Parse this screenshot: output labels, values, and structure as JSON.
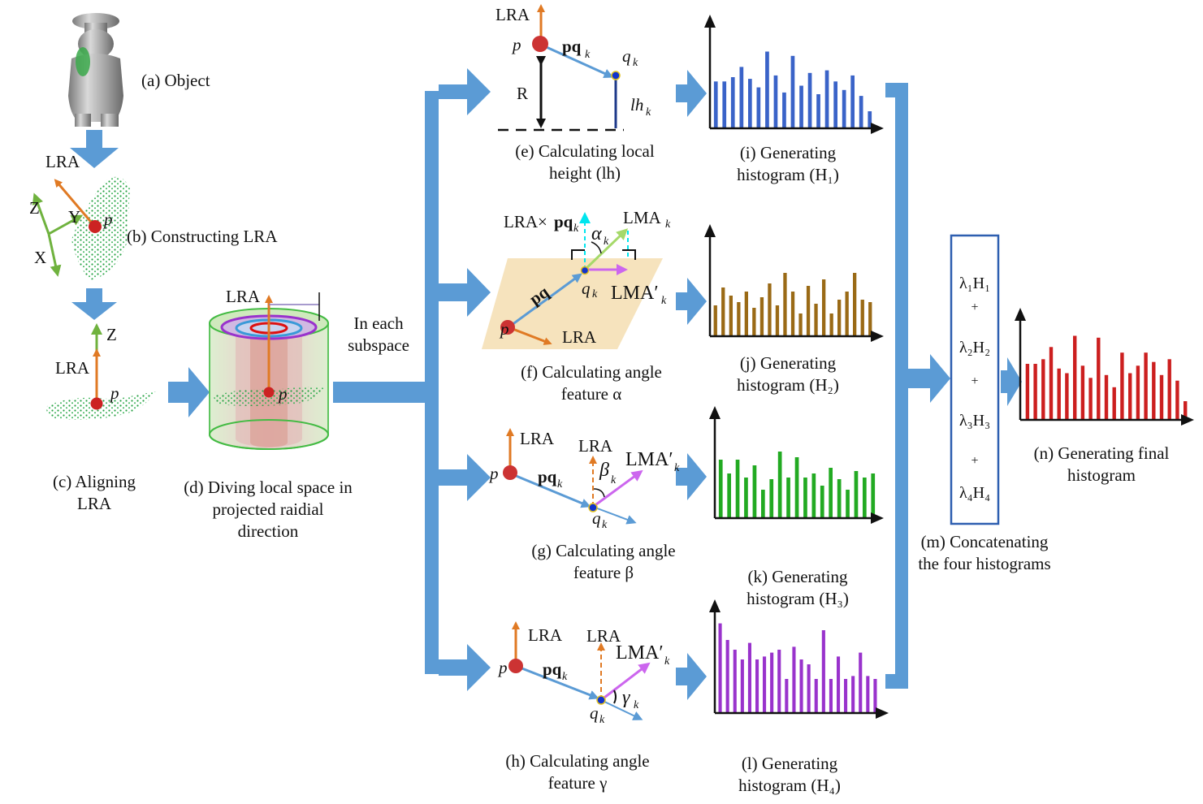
{
  "captions": {
    "a": "(a) Object",
    "b": "(b) Constructing LRA",
    "c": [
      "(c) Aligning",
      "LRA"
    ],
    "d": [
      "(d) Diving local space in",
      "projected raidial",
      "direction"
    ],
    "subspace": [
      "In each",
      "subspace"
    ],
    "e": [
      "(e) Calculating local",
      "height (lh)"
    ],
    "f": [
      "(f) Calculating angle",
      "feature  α"
    ],
    "g": [
      "(g) Calculating angle",
      "feature  β"
    ],
    "h": [
      "(h) Calculating angle",
      "feature  γ"
    ],
    "i": [
      "(i) Generating",
      "histogram (H₁)"
    ],
    "j": [
      "(j) Generating",
      "histogram (H₂)"
    ],
    "k": [
      "(k) Generating",
      "histogram (H₃)"
    ],
    "l": [
      "(l) Generating",
      "histogram (H₄)"
    ],
    "m": [
      "(m) Concatenating",
      "the four histograms"
    ],
    "n": [
      "(n) Generating final",
      "histogram"
    ]
  },
  "labels": {
    "lra": "LRA",
    "x": "X",
    "y": "Y",
    "z": "Z",
    "p": "p",
    "pq": "pq",
    "k": "k",
    "q": "q",
    "R": "R",
    "lh": "lh",
    "lma": "LMA",
    "lma_prime": "LMA′",
    "lra_cross": "LRA×",
    "alpha": "α",
    "beta": "β",
    "gamma": "γ"
  },
  "concat_terms": [
    "λ₁H₁",
    "+",
    "λ₂H₂",
    "+",
    "λ₃H₃",
    "+",
    "λ₄H₄"
  ],
  "histograms": [
    {
      "id": "H1",
      "color": "#3a63c8",
      "values": [
        0.55,
        0.55,
        0.6,
        0.72,
        0.58,
        0.48,
        0.9,
        0.62,
        0.42,
        0.85,
        0.5,
        0.65,
        0.4,
        0.68,
        0.55,
        0.45,
        0.62,
        0.38,
        0.2
      ]
    },
    {
      "id": "H2",
      "color": "#9a6a16",
      "values": [
        0.38,
        0.6,
        0.5,
        0.42,
        0.55,
        0.35,
        0.48,
        0.65,
        0.38,
        0.78,
        0.55,
        0.28,
        0.62,
        0.4,
        0.7,
        0.28,
        0.45,
        0.55,
        0.78,
        0.45,
        0.42
      ]
    },
    {
      "id": "H3",
      "color": "#22aa22",
      "values": [
        0.72,
        0.55,
        0.72,
        0.5,
        0.65,
        0.35,
        0.48,
        0.82,
        0.5,
        0.75,
        0.5,
        0.55,
        0.4,
        0.62,
        0.48,
        0.35,
        0.58,
        0.5,
        0.55
      ]
    },
    {
      "id": "H4",
      "color": "#9933cc",
      "values": [
        0.92,
        0.75,
        0.65,
        0.55,
        0.72,
        0.55,
        0.58,
        0.62,
        0.65,
        0.35,
        0.68,
        0.55,
        0.5,
        0.35,
        0.85,
        0.35,
        0.58,
        0.35,
        0.38,
        0.62,
        0.38,
        0.35
      ]
    },
    {
      "id": "H",
      "color": "#cc1f1f",
      "values": [
        0.6,
        0.6,
        0.65,
        0.78,
        0.55,
        0.5,
        0.9,
        0.58,
        0.45,
        0.88,
        0.48,
        0.35,
        0.72,
        0.5,
        0.58,
        0.72,
        0.62,
        0.48,
        0.65,
        0.42,
        0.2
      ]
    }
  ],
  "colors": {
    "flow_arrow": "#5b9bd5",
    "lra_arrow": "#e07a24",
    "green_axis": "#6fb23e",
    "point_p": "#cc2222",
    "point_q": "#1133cc",
    "pq_vector": "#5b9bd5",
    "lma_arrow": "#a6d96a",
    "lma_prime_arrow": "#cc66ee",
    "cyan_arrow": "#00e5ee",
    "plane": "#f6e3bd"
  }
}
